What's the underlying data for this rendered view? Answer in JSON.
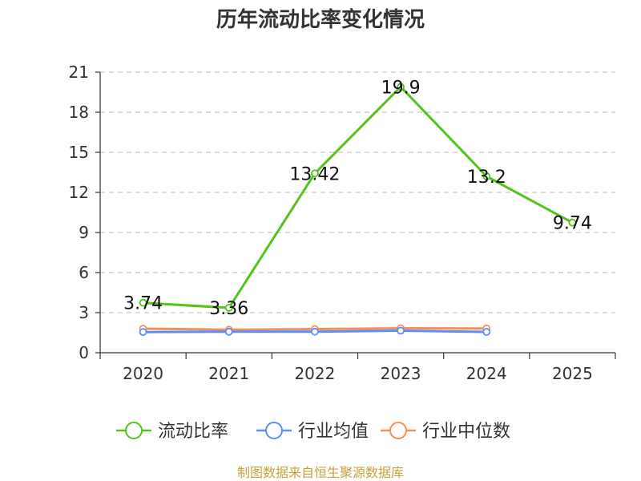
{
  "title": "历年流动比率变化情况",
  "source": "制图数据来自恒生聚源数据库",
  "chart_data": {
    "type": "line",
    "categories": [
      "2020",
      "2021",
      "2022",
      "2023",
      "2024",
      "2025"
    ],
    "ylim": [
      0,
      21
    ],
    "yticks": [
      0,
      3,
      6,
      9,
      12,
      15,
      18,
      21
    ],
    "grid": true,
    "legend_position": "bottom",
    "series": [
      {
        "name": "流动比率",
        "color": "#52c41a",
        "values": [
          3.74,
          3.36,
          13.42,
          19.9,
          13.2,
          9.74
        ],
        "labels": [
          "3.74",
          "3.36",
          "13.42",
          "19.9",
          "13.2",
          "9.74"
        ]
      },
      {
        "name": "行业均值",
        "color": "#5b8ff9",
        "values": [
          1.55,
          1.57,
          1.58,
          1.65,
          1.56,
          null
        ]
      },
      {
        "name": "行业中位数",
        "color": "#f6905a",
        "values": [
          1.8,
          1.72,
          1.77,
          1.83,
          1.82,
          null
        ]
      }
    ]
  }
}
